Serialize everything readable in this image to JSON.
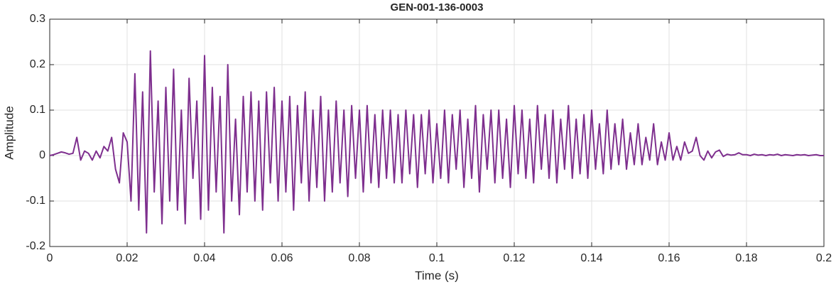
{
  "chart_data": {
    "type": "line",
    "title": "GEN-001-136-0003",
    "xlabel": "Time (s)",
    "ylabel": "Amplitude",
    "color": "#7e2f8e",
    "grid": true,
    "xlim": [
      0,
      0.2
    ],
    "xticks": [
      0,
      0.02,
      0.04,
      0.06,
      0.08,
      0.1,
      0.12,
      0.14,
      0.16,
      0.18,
      0.2
    ],
    "ylim": [
      -0.2,
      0.3
    ],
    "yticks": [
      -0.2,
      -0.1,
      0,
      0.1,
      0.2,
      0.3
    ],
    "x": [
      0,
      0.001,
      0.002,
      0.003,
      0.004,
      0.005,
      0.006,
      0.007,
      0.008,
      0.009,
      0.01,
      0.011,
      0.012,
      0.013,
      0.014,
      0.015,
      0.016,
      0.017,
      0.018,
      0.019,
      0.02,
      0.021,
      0.022,
      0.023,
      0.024,
      0.025,
      0.026,
      0.027,
      0.028,
      0.029,
      0.03,
      0.031,
      0.032,
      0.033,
      0.034,
      0.035,
      0.036,
      0.037,
      0.038,
      0.039,
      0.04,
      0.041,
      0.042,
      0.043,
      0.044,
      0.045,
      0.046,
      0.047,
      0.048,
      0.049,
      0.05,
      0.051,
      0.052,
      0.053,
      0.054,
      0.055,
      0.056,
      0.057,
      0.058,
      0.059,
      0.06,
      0.061,
      0.062,
      0.063,
      0.064,
      0.065,
      0.066,
      0.067,
      0.068,
      0.069,
      0.07,
      0.071,
      0.072,
      0.073,
      0.074,
      0.075,
      0.076,
      0.077,
      0.078,
      0.079,
      0.08,
      0.081,
      0.082,
      0.083,
      0.084,
      0.085,
      0.086,
      0.087,
      0.088,
      0.089,
      0.09,
      0.091,
      0.092,
      0.093,
      0.094,
      0.095,
      0.096,
      0.097,
      0.098,
      0.099,
      0.1,
      0.101,
      0.102,
      0.103,
      0.104,
      0.105,
      0.106,
      0.107,
      0.108,
      0.109,
      0.11,
      0.111,
      0.112,
      0.113,
      0.114,
      0.115,
      0.116,
      0.117,
      0.118,
      0.119,
      0.12,
      0.121,
      0.122,
      0.123,
      0.124,
      0.125,
      0.126,
      0.127,
      0.128,
      0.129,
      0.13,
      0.131,
      0.132,
      0.133,
      0.134,
      0.135,
      0.136,
      0.137,
      0.138,
      0.139,
      0.14,
      0.141,
      0.142,
      0.143,
      0.144,
      0.145,
      0.146,
      0.147,
      0.148,
      0.149,
      0.15,
      0.151,
      0.152,
      0.153,
      0.154,
      0.155,
      0.156,
      0.157,
      0.158,
      0.159,
      0.16,
      0.161,
      0.162,
      0.163,
      0.164,
      0.165,
      0.166,
      0.167,
      0.168,
      0.169,
      0.17,
      0.171,
      0.172,
      0.173,
      0.174,
      0.175,
      0.176,
      0.177,
      0.178,
      0.179,
      0.18,
      0.181,
      0.182,
      0.183,
      0.184,
      0.185,
      0.186,
      0.187,
      0.188,
      0.189,
      0.19,
      0.191,
      0.192,
      0.193,
      0.194,
      0.195,
      0.196,
      0.197,
      0.198,
      0.199,
      0.2
    ],
    "values": [
      0,
      0.002,
      0.005,
      0.008,
      0.006,
      0.003,
      0.005,
      0.04,
      -0.01,
      0.01,
      0.005,
      -0.01,
      0.01,
      -0.005,
      0.02,
      0.01,
      0.04,
      -0.03,
      -0.06,
      0.05,
      0.03,
      -0.1,
      0.18,
      -0.12,
      0.14,
      -0.17,
      0.23,
      -0.08,
      0.12,
      -0.15,
      0.15,
      -0.1,
      0.19,
      -0.12,
      0.1,
      -0.15,
      0.17,
      -0.05,
      0.12,
      -0.14,
      0.22,
      -0.12,
      0.15,
      -0.08,
      0.13,
      -0.17,
      0.2,
      -0.1,
      0.08,
      -0.13,
      0.13,
      -0.08,
      0.14,
      -0.1,
      0.12,
      -0.12,
      0.14,
      -0.06,
      0.15,
      -0.1,
      0.12,
      -0.08,
      0.13,
      -0.12,
      0.11,
      -0.06,
      0.14,
      -0.1,
      0.1,
      -0.07,
      0.13,
      -0.1,
      0.1,
      -0.08,
      0.12,
      -0.06,
      0.1,
      -0.09,
      0.11,
      -0.05,
      0.1,
      -0.08,
      0.11,
      -0.06,
      0.09,
      -0.07,
      0.1,
      -0.05,
      0.1,
      -0.06,
      0.09,
      -0.06,
      0.1,
      -0.04,
      0.09,
      -0.07,
      0.09,
      -0.04,
      0.1,
      -0.06,
      0.07,
      -0.05,
      0.1,
      -0.06,
      0.09,
      -0.03,
      0.1,
      -0.07,
      0.08,
      -0.05,
      0.11,
      -0.08,
      0.09,
      -0.03,
      0.1,
      -0.06,
      0.1,
      -0.05,
      0.08,
      -0.07,
      0.11,
      -0.04,
      0.1,
      -0.05,
      0.08,
      -0.06,
      0.11,
      -0.03,
      0.09,
      -0.05,
      0.1,
      -0.06,
      0.08,
      -0.03,
      0.11,
      -0.05,
      0.08,
      -0.04,
      0.09,
      -0.05,
      0.1,
      -0.03,
      0.07,
      -0.04,
      0.1,
      -0.03,
      0.07,
      -0.02,
      0.08,
      -0.03,
      0.05,
      -0.02,
      0.07,
      -0.02,
      0.04,
      -0.01,
      0.07,
      -0.02,
      0.03,
      -0.01,
      0.05,
      -0.01,
      0.02,
      -0.01,
      0.03,
      0.005,
      0.01,
      0.04,
      0,
      -0.01,
      0.01,
      -0.005,
      0.008,
      0.012,
      -0.002,
      0.003,
      0.001,
      0.002,
      0.006,
      0.002,
      0.002,
      0,
      0.003,
      0.001,
      0.002,
      0,
      0.002,
      0.001,
      0.003,
      0,
      0.002,
      0.001,
      0,
      0.002,
      0.001,
      0.002,
      0,
      0.001,
      0.002,
      0,
      0
    ]
  }
}
